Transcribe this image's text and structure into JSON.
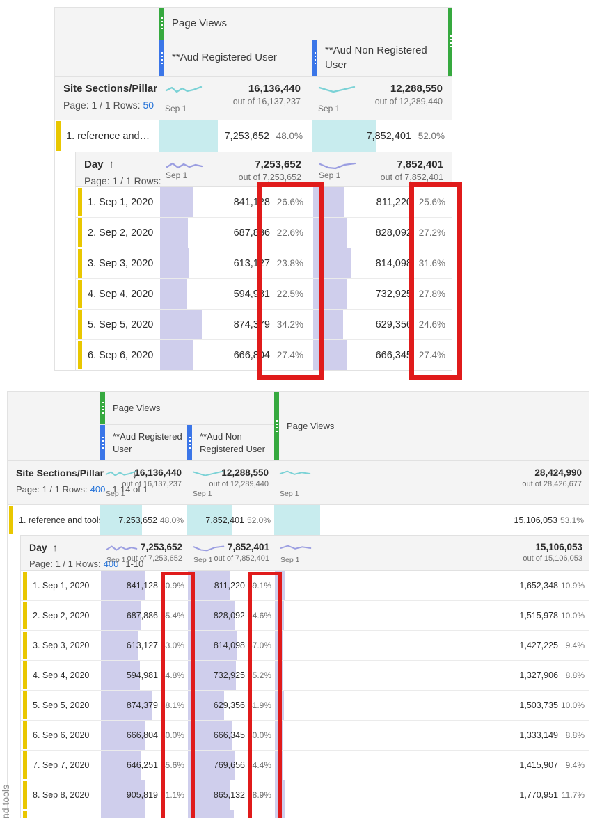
{
  "colors": {
    "accent_green": "#36A93F",
    "accent_blue": "#3B76E8",
    "accent_yellow": "#E9C700",
    "bar_cyan": "#C8ECEE",
    "bar_purple": "#CFCEEC",
    "spark_teal": "#7BD2D6",
    "spark_purple": "#9B9EE1",
    "highlight_red": "#E01B1B",
    "link_blue": "#2472D8"
  },
  "tables": [
    {
      "group_label": "Page Views",
      "col3_group_label": null,
      "segments": [
        {
          "label": "**Aud Registered User"
        },
        {
          "label": "**Aud Non Registered User"
        }
      ],
      "sections_header": {
        "title": "Site Sections/Pillar",
        "page_label": "Page: 1 / 1 Rows:",
        "rows_link": "50",
        "range": "",
        "sort_col": null,
        "metrics": [
          {
            "spark": "wave",
            "spark_color": "teal",
            "date_label": "Sep 1",
            "total": "16,136,440",
            "out_of": "out of 16,137,237"
          },
          {
            "spark": "dip",
            "spark_color": "teal",
            "date_label": "Sep 1",
            "total": "12,288,550",
            "out_of": "out of 12,289,440"
          }
        ]
      },
      "section_row": {
        "label": "1. reference and…",
        "cells": [
          {
            "value": "7,253,652",
            "pct": "48.0%"
          },
          {
            "value": "7,852,401",
            "pct": "52.0%"
          }
        ]
      },
      "day_header": {
        "title": "Day",
        "sort_arrow": "↑",
        "page_label": "Page: 1 / 1 Rows:",
        "rows_link": "",
        "range": "",
        "metrics": [
          {
            "spark": "wave2",
            "spark_color": "purple",
            "date_label": "Sep 1",
            "total": "7,253,652",
            "out_of": "out of 7,253,652"
          },
          {
            "spark": "dip2",
            "spark_color": "purple",
            "date_label": "Sep 1",
            "total": "7,852,401",
            "out_of": "out of 7,852,401"
          }
        ]
      },
      "day_rows": [
        {
          "label": "1. Sep 1, 2020",
          "cells": [
            {
              "value": "841,128",
              "pct": "26.6%"
            },
            {
              "value": "811,220",
              "pct": "25.6%"
            }
          ]
        },
        {
          "label": "2. Sep 2, 2020",
          "cells": [
            {
              "value": "687,886",
              "pct": "22.6%"
            },
            {
              "value": "828,092",
              "pct": "27.2%"
            }
          ]
        },
        {
          "label": "3. Sep 3, 2020",
          "cells": [
            {
              "value": "613,127",
              "pct": "23.8%"
            },
            {
              "value": "814,098",
              "pct": "31.6%"
            }
          ]
        },
        {
          "label": "4. Sep 4, 2020",
          "cells": [
            {
              "value": "594,981",
              "pct": "22.5%"
            },
            {
              "value": "732,925",
              "pct": "27.8%"
            }
          ]
        },
        {
          "label": "5. Sep 5, 2020",
          "cells": [
            {
              "value": "874,379",
              "pct": "34.2%"
            },
            {
              "value": "629,356",
              "pct": "24.6%"
            }
          ]
        },
        {
          "label": "6. Sep 6, 2020",
          "cells": [
            {
              "value": "666,804",
              "pct": "27.4%"
            },
            {
              "value": "666,345",
              "pct": "27.4%"
            }
          ]
        }
      ],
      "partial_row_pcts": null,
      "side_text": null
    },
    {
      "group_label": "Page Views",
      "col3_group_label": "Page Views",
      "segments": [
        {
          "label": "**Aud Registered User"
        },
        {
          "label": "**Aud Non Registered User"
        }
      ],
      "sections_header": {
        "title": "Site Sections/Pillar",
        "page_label": "Page: 1 / 1 Rows:",
        "rows_link": "400",
        "range": "1-14 of 1",
        "sort_col": 0,
        "metrics": [
          {
            "spark": "wave",
            "spark_color": "teal",
            "date_label": "Sep 1",
            "total": "16,136,440",
            "out_of": "out of 16,137,237"
          },
          {
            "spark": "dip",
            "spark_color": "teal",
            "date_label": "Sep 1",
            "total": "12,288,550",
            "out_of": "out of 12,289,440"
          },
          {
            "spark": "wave3",
            "spark_color": "teal",
            "date_label": "Sep 1",
            "total": "28,424,990",
            "out_of": "out of 28,426,677"
          }
        ]
      },
      "section_row": {
        "label": "1. reference and tools",
        "cells": [
          {
            "value": "7,253,652",
            "pct": "48.0%"
          },
          {
            "value": "7,852,401",
            "pct": "52.0%"
          },
          {
            "value": "15,106,053",
            "pct": "53.1%"
          }
        ]
      },
      "day_header": {
        "title": "Day",
        "sort_arrow": "↑",
        "page_label": "Page: 1 / 1 Rows:",
        "rows_link": "400",
        "range": "1-10",
        "metrics": [
          {
            "spark": "wave2",
            "spark_color": "purple",
            "date_label": "Sep 1",
            "total": "7,253,652",
            "out_of": "out of 7,253,652"
          },
          {
            "spark": "dip2",
            "spark_color": "purple",
            "date_label": "Sep 1",
            "total": "7,852,401",
            "out_of": "out of 7,852,401"
          },
          {
            "spark": "wave3",
            "spark_color": "purple",
            "date_label": "Sep 1",
            "total": "15,106,053",
            "out_of": "out of 15,106,053"
          }
        ]
      },
      "day_rows": [
        {
          "label": "1. Sep 1, 2020",
          "cells": [
            {
              "value": "841,128",
              "pct": "50.9%"
            },
            {
              "value": "811,220",
              "pct": "49.1%"
            },
            {
              "value": "1,652,348",
              "pct": "10.9%"
            }
          ]
        },
        {
          "label": "2. Sep 2, 2020",
          "cells": [
            {
              "value": "687,886",
              "pct": "45.4%"
            },
            {
              "value": "828,092",
              "pct": "54.6%"
            },
            {
              "value": "1,515,978",
              "pct": "10.0%"
            }
          ]
        },
        {
          "label": "3. Sep 3, 2020",
          "cells": [
            {
              "value": "613,127",
              "pct": "43.0%"
            },
            {
              "value": "814,098",
              "pct": "57.0%"
            },
            {
              "value": "1,427,225",
              "pct": "9.4%"
            }
          ]
        },
        {
          "label": "4. Sep 4, 2020",
          "cells": [
            {
              "value": "594,981",
              "pct": "44.8%"
            },
            {
              "value": "732,925",
              "pct": "55.2%"
            },
            {
              "value": "1,327,906",
              "pct": "8.8%"
            }
          ]
        },
        {
          "label": "5. Sep 5, 2020",
          "cells": [
            {
              "value": "874,379",
              "pct": "58.1%"
            },
            {
              "value": "629,356",
              "pct": "41.9%"
            },
            {
              "value": "1,503,735",
              "pct": "10.0%"
            }
          ]
        },
        {
          "label": "6. Sep 6, 2020",
          "cells": [
            {
              "value": "666,804",
              "pct": "50.0%"
            },
            {
              "value": "666,345",
              "pct": "50.0%"
            },
            {
              "value": "1,333,149",
              "pct": "8.8%"
            }
          ]
        },
        {
          "label": "7. Sep 7, 2020",
          "cells": [
            {
              "value": "646,251",
              "pct": "45.6%"
            },
            {
              "value": "769,656",
              "pct": "54.4%"
            },
            {
              "value": "1,415,907",
              "pct": "9.4%"
            }
          ]
        },
        {
          "label": "8. Sep 8, 2020",
          "cells": [
            {
              "value": "905,819",
              "pct": "51.1%"
            },
            {
              "value": "865,132",
              "pct": "48.9%"
            },
            {
              "value": "1,770,951",
              "pct": "11.7%"
            }
          ]
        }
      ],
      "partial_row_pcts": [
        50,
        53,
        11
      ],
      "side_text": "nd tools"
    }
  ]
}
